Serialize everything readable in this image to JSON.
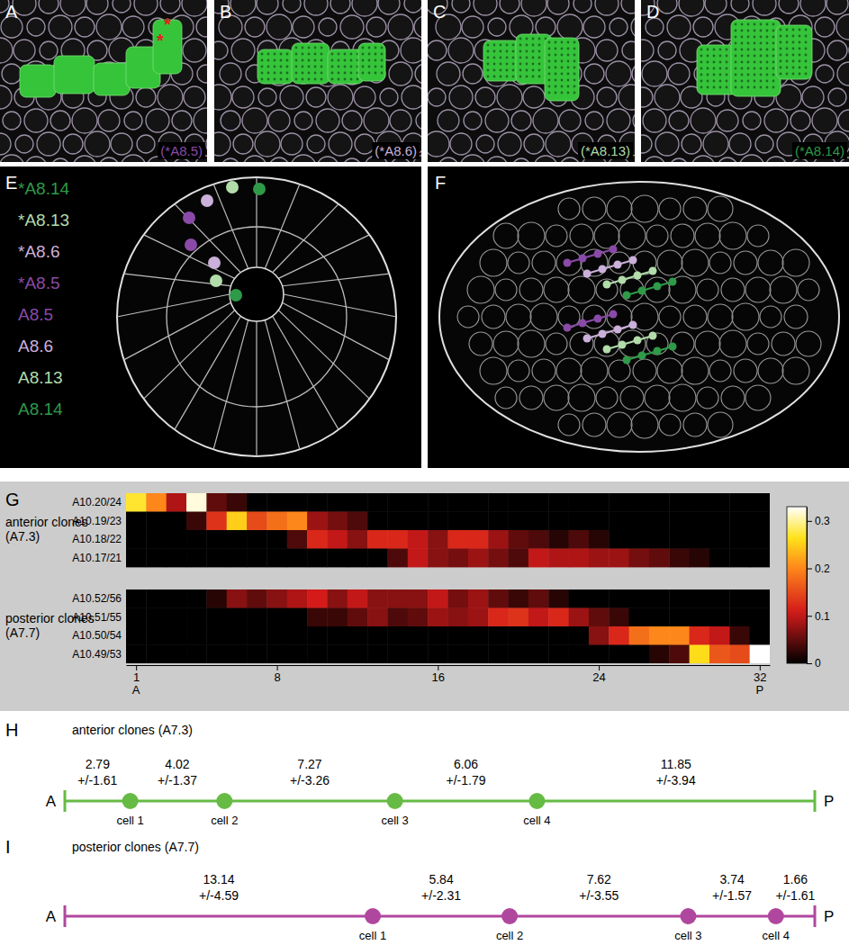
{
  "panel_labels": [
    "A",
    "B",
    "C",
    "D",
    "E",
    "F",
    "G",
    "H",
    "I"
  ],
  "images": [
    {
      "label": "(*A8.5)",
      "color": "#8a4aa8",
      "annotations": [
        "*",
        "*"
      ]
    },
    {
      "label": "(*A8.6)",
      "color": "#cbb0da",
      "annotations": []
    },
    {
      "label": "(*A8.13)",
      "color": "#b2dcaa",
      "annotations": []
    },
    {
      "label": "(*A8.14)",
      "color": "#2f9a48",
      "annotations": []
    }
  ],
  "embryo_key": [
    {
      "label": "*A8.14",
      "color": "#2f9a48"
    },
    {
      "label": "*A8.13",
      "color": "#b2dcaa"
    },
    {
      "label": "*A8.6",
      "color": "#cbb0da"
    },
    {
      "label": "*A8.5",
      "color": "#8a4aa8"
    },
    {
      "label": "A8.5",
      "color": "#8a4aa8"
    },
    {
      "label": "A8.6",
      "color": "#cbb0da"
    },
    {
      "label": "A8.13",
      "color": "#b2dcaa"
    },
    {
      "label": "A8.14",
      "color": "#2f9a48"
    }
  ],
  "chart_data": [
    {
      "type": "heatmap",
      "x": [
        1,
        2,
        3,
        4,
        5,
        6,
        7,
        8,
        9,
        10,
        11,
        12,
        13,
        14,
        15,
        16,
        17,
        18,
        19,
        20,
        21,
        22,
        23,
        24,
        25,
        26,
        27,
        28,
        29,
        30,
        31,
        32
      ],
      "xlim": [
        0.5,
        32.5
      ],
      "xticks": [
        1,
        8,
        16,
        24,
        32
      ],
      "end_labels": [
        "A",
        "P"
      ],
      "colorbar": {
        "range": [
          0,
          0.33
        ],
        "ticks": [
          0,
          0.1,
          0.2,
          0.3
        ]
      },
      "groups": [
        {
          "label": [
            "anterior clones",
            "(A7.3)"
          ],
          "rows": [
            {
              "name": "A10.20/24",
              "values": [
                0.27,
                0.2,
                0.09,
                0.32,
                0.05,
                0.03,
                0,
                0,
                0,
                0,
                0,
                0,
                0,
                0,
                0,
                0,
                0,
                0,
                0,
                0,
                0,
                0,
                0,
                0,
                0,
                0,
                0,
                0,
                0,
                0,
                0,
                0
              ]
            },
            {
              "name": "A10.19/23",
              "values": [
                0,
                0,
                0,
                0.03,
                0.13,
                0.25,
                0.15,
                0.18,
                0.2,
                0.08,
                0.06,
                0.04,
                0,
                0,
                0,
                0,
                0,
                0,
                0,
                0,
                0,
                0,
                0,
                0,
                0,
                0,
                0,
                0,
                0,
                0,
                0,
                0
              ]
            },
            {
              "name": "A10.18/22",
              "values": [
                0,
                0,
                0,
                0,
                0,
                0,
                0,
                0,
                0.04,
                0.12,
                0.1,
                0.07,
                0.12,
                0.12,
                0.1,
                0.07,
                0.12,
                0.12,
                0.08,
                0.05,
                0.04,
                0.02,
                0.04,
                0.02,
                0,
                0,
                0,
                0,
                0,
                0,
                0,
                0
              ]
            },
            {
              "name": "A10.17/21",
              "values": [
                0,
                0,
                0,
                0,
                0,
                0,
                0,
                0,
                0,
                0,
                0,
                0,
                0,
                0.04,
                0.1,
                0.07,
                0.06,
                0.08,
                0.06,
                0.04,
                0.1,
                0.09,
                0.09,
                0.08,
                0.08,
                0.06,
                0.05,
                0.03,
                0.02,
                0,
                0,
                0
              ]
            }
          ]
        },
        {
          "label": [
            "posterior clones",
            "(A7.7)"
          ],
          "rows": [
            {
              "name": "A10.52/56",
              "values": [
                0,
                0,
                0,
                0,
                0.02,
                0.07,
                0.05,
                0.07,
                0.09,
                0.11,
                0.07,
                0.1,
                0.07,
                0.07,
                0.07,
                0.1,
                0.06,
                0.08,
                0.05,
                0.03,
                0.05,
                0.02,
                0,
                0,
                0,
                0,
                0,
                0,
                0,
                0,
                0,
                0
              ]
            },
            {
              "name": "A10.51/55",
              "values": [
                0,
                0,
                0,
                0,
                0,
                0,
                0,
                0,
                0,
                0.03,
                0.03,
                0.05,
                0.07,
                0.04,
                0.05,
                0.08,
                0.07,
                0.08,
                0.12,
                0.13,
                0.1,
                0.12,
                0.08,
                0.05,
                0.03,
                0,
                0,
                0,
                0,
                0,
                0,
                0
              ]
            },
            {
              "name": "A10.50/54",
              "values": [
                0,
                0,
                0,
                0,
                0,
                0,
                0,
                0,
                0,
                0,
                0,
                0,
                0,
                0,
                0,
                0,
                0,
                0,
                0,
                0,
                0,
                0,
                0,
                0.07,
                0.12,
                0.18,
                0.2,
                0.2,
                0.12,
                0.1,
                0.03,
                0
              ]
            },
            {
              "name": "A10.49/53",
              "values": [
                0,
                0,
                0,
                0,
                0,
                0,
                0,
                0,
                0,
                0,
                0,
                0,
                0,
                0,
                0,
                0,
                0,
                0,
                0,
                0,
                0,
                0,
                0,
                0,
                0,
                0,
                0.02,
                0.04,
                0.26,
                0.16,
                0.15,
                0.33
              ]
            }
          ]
        }
      ]
    },
    {
      "type": "segments",
      "title": "anterior clones (A7.3)",
      "color": "#66bb44",
      "values": [
        2.79,
        4.02,
        7.27,
        6.06,
        11.85
      ],
      "errors": [
        1.61,
        1.37,
        3.26,
        1.79,
        3.94
      ],
      "error_labels": [
        "+/-1.61",
        "+/-1.37",
        "+/-3.26",
        "+/-1.79",
        "+/-3.94"
      ],
      "points": [
        "cell 1",
        "cell 2",
        "cell 3",
        "cell 4"
      ],
      "end_labels": [
        "A",
        "P"
      ]
    },
    {
      "type": "segments",
      "title": "posterior clones (A7.7)",
      "color": "#b0479e",
      "values": [
        13.14,
        5.84,
        7.62,
        3.74,
        1.66
      ],
      "errors": [
        4.59,
        2.31,
        3.55,
        1.57,
        1.61
      ],
      "error_labels": [
        "+/-4.59",
        "+/-2.31",
        "+/-3.55",
        "+/-1.57",
        "+/-1.61"
      ],
      "points": [
        "cell 1",
        "cell 2",
        "cell 3",
        "cell 4"
      ],
      "end_labels": [
        "A",
        "P"
      ]
    }
  ]
}
